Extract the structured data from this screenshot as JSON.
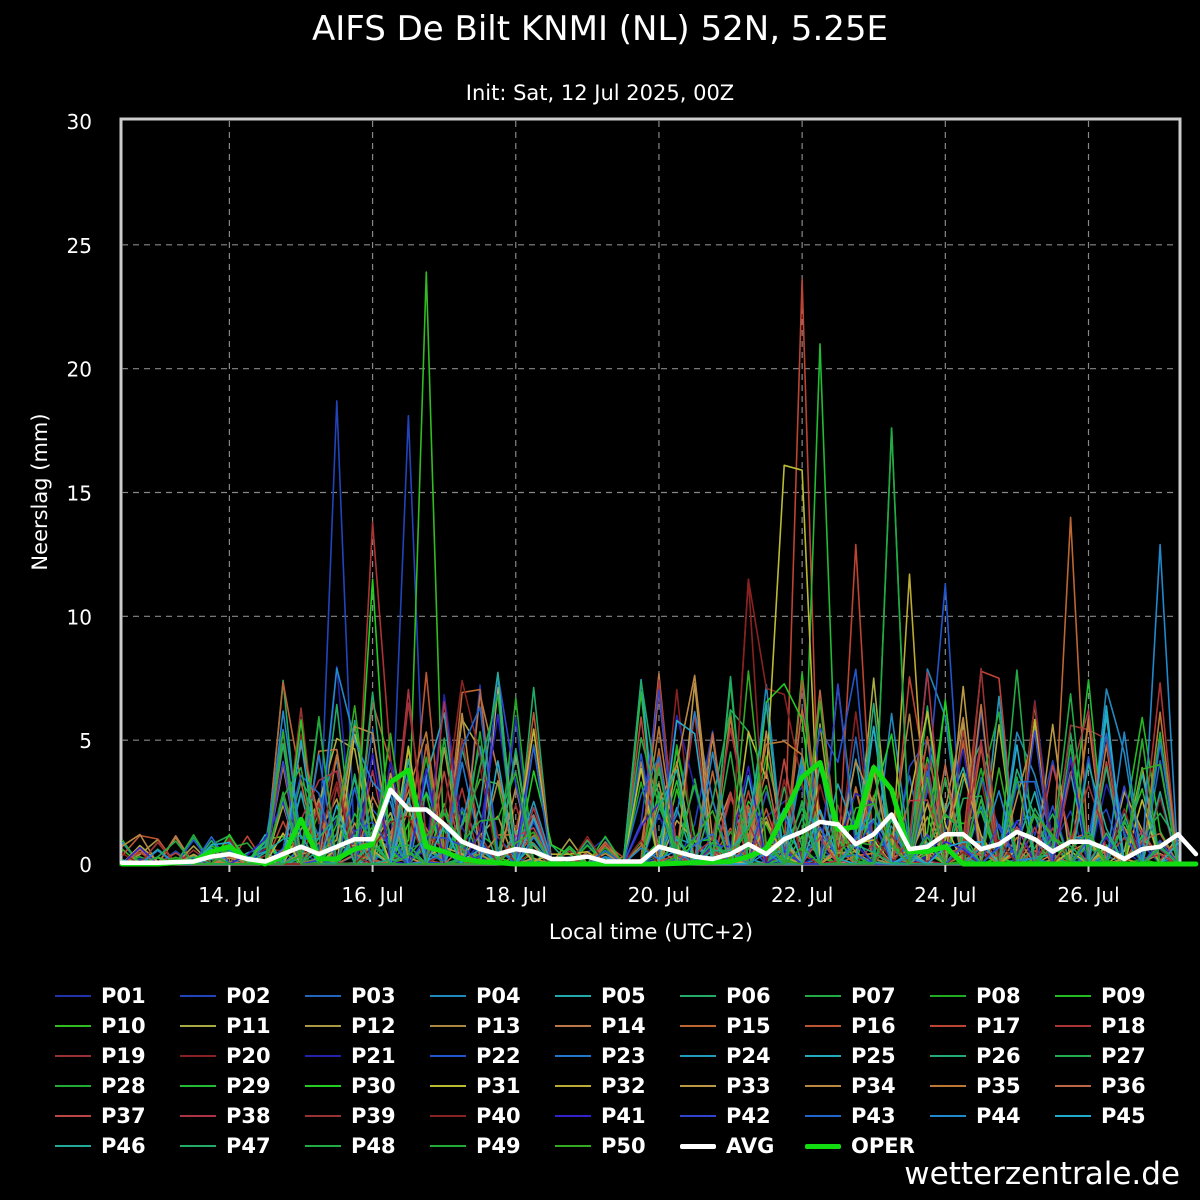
{
  "chart_data": {
    "type": "line",
    "title": "AIFS De Bilt KNMI (NL) 52N, 5.25E",
    "subtitle": "Init: Sat, 12 Jul 2025, 00Z",
    "xlabel": "Local time (UTC+2)",
    "ylabel": "Neerslag (mm)",
    "xlim": [
      "2025-07-12T12:00",
      "2025-07-27T06:00"
    ],
    "ylim": [
      0,
      30
    ],
    "yticks": [
      0,
      5,
      10,
      15,
      20,
      25,
      30
    ],
    "xticks": [
      {
        "date": "2025-07-14",
        "label": "14. Jul"
      },
      {
        "date": "2025-07-16",
        "label": "16. Jul"
      },
      {
        "date": "2025-07-18",
        "label": "18. Jul"
      },
      {
        "date": "2025-07-20",
        "label": "20. Jul"
      },
      {
        "date": "2025-07-22",
        "label": "22. Jul"
      },
      {
        "date": "2025-07-24",
        "label": "24. Jul"
      },
      {
        "date": "2025-07-26",
        "label": "26. Jul"
      }
    ],
    "grid": true,
    "legend_position": "bottom",
    "highlight_series": [
      {
        "name": "AVG",
        "color": "#ffffff",
        "points": [
          [
            "2025-07-12T12:00",
            0.05
          ],
          [
            "2025-07-13T00:00",
            0.05
          ],
          [
            "2025-07-13T12:00",
            0.1
          ],
          [
            "2025-07-13T18:00",
            0.3
          ],
          [
            "2025-07-14T00:00",
            0.4
          ],
          [
            "2025-07-14T06:00",
            0.2
          ],
          [
            "2025-07-14T12:00",
            0.1
          ],
          [
            "2025-07-14T18:00",
            0.4
          ],
          [
            "2025-07-15T00:00",
            0.7
          ],
          [
            "2025-07-15T06:00",
            0.4
          ],
          [
            "2025-07-15T12:00",
            0.7
          ],
          [
            "2025-07-15T18:00",
            1.0
          ],
          [
            "2025-07-16T00:00",
            1.0
          ],
          [
            "2025-07-16T06:00",
            3.0
          ],
          [
            "2025-07-16T12:00",
            2.2
          ],
          [
            "2025-07-16T18:00",
            2.2
          ],
          [
            "2025-07-17T00:00",
            1.6
          ],
          [
            "2025-07-17T06:00",
            0.9
          ],
          [
            "2025-07-17T12:00",
            0.6
          ],
          [
            "2025-07-17T18:00",
            0.4
          ],
          [
            "2025-07-18T00:00",
            0.6
          ],
          [
            "2025-07-18T06:00",
            0.5
          ],
          [
            "2025-07-18T12:00",
            0.2
          ],
          [
            "2025-07-18T18:00",
            0.2
          ],
          [
            "2025-07-19T00:00",
            0.3
          ],
          [
            "2025-07-19T06:00",
            0.1
          ],
          [
            "2025-07-19T12:00",
            0.1
          ],
          [
            "2025-07-19T18:00",
            0.1
          ],
          [
            "2025-07-20T00:00",
            0.7
          ],
          [
            "2025-07-20T06:00",
            0.5
          ],
          [
            "2025-07-20T12:00",
            0.3
          ],
          [
            "2025-07-20T18:00",
            0.2
          ],
          [
            "2025-07-21T00:00",
            0.4
          ],
          [
            "2025-07-21T06:00",
            0.8
          ],
          [
            "2025-07-21T12:00",
            0.4
          ],
          [
            "2025-07-21T18:00",
            1.0
          ],
          [
            "2025-07-22T00:00",
            1.3
          ],
          [
            "2025-07-22T06:00",
            1.7
          ],
          [
            "2025-07-22T12:00",
            1.6
          ],
          [
            "2025-07-22T18:00",
            0.8
          ],
          [
            "2025-07-23T00:00",
            1.2
          ],
          [
            "2025-07-23T06:00",
            2.0
          ],
          [
            "2025-07-23T12:00",
            0.6
          ],
          [
            "2025-07-23T18:00",
            0.7
          ],
          [
            "2025-07-24T00:00",
            1.2
          ],
          [
            "2025-07-24T06:00",
            1.2
          ],
          [
            "2025-07-24T12:00",
            0.6
          ],
          [
            "2025-07-24T18:00",
            0.8
          ],
          [
            "2025-07-25T00:00",
            1.3
          ],
          [
            "2025-07-25T06:00",
            1.0
          ],
          [
            "2025-07-25T12:00",
            0.5
          ],
          [
            "2025-07-25T18:00",
            0.9
          ],
          [
            "2025-07-26T00:00",
            0.9
          ],
          [
            "2025-07-26T06:00",
            0.6
          ],
          [
            "2025-07-26T12:00",
            0.2
          ],
          [
            "2025-07-26T18:00",
            0.6
          ],
          [
            "2025-07-27T00:00",
            0.7
          ],
          [
            "2025-07-27T06:00",
            1.2
          ],
          [
            "2025-07-27T12:00",
            0.4
          ]
        ]
      },
      {
        "name": "OPER",
        "color": "#11dd11",
        "points": [
          [
            "2025-07-12T12:00",
            0
          ],
          [
            "2025-07-13T00:00",
            0
          ],
          [
            "2025-07-13T12:00",
            0.1
          ],
          [
            "2025-07-13T18:00",
            0.5
          ],
          [
            "2025-07-14T00:00",
            0.7
          ],
          [
            "2025-07-14T06:00",
            0.2
          ],
          [
            "2025-07-14T12:00",
            0
          ],
          [
            "2025-07-14T18:00",
            0.3
          ],
          [
            "2025-07-15T00:00",
            1.8
          ],
          [
            "2025-07-15T06:00",
            0.2
          ],
          [
            "2025-07-15T12:00",
            0.2
          ],
          [
            "2025-07-15T18:00",
            0.6
          ],
          [
            "2025-07-16T00:00",
            0.8
          ],
          [
            "2025-07-16T06:00",
            3.3
          ],
          [
            "2025-07-16T12:00",
            3.8
          ],
          [
            "2025-07-16T18:00",
            0.7
          ],
          [
            "2025-07-17T00:00",
            0.5
          ],
          [
            "2025-07-17T06:00",
            0.2
          ],
          [
            "2025-07-17T12:00",
            0.1
          ],
          [
            "2025-07-18T00:00",
            0
          ],
          [
            "2025-07-20T00:00",
            0
          ],
          [
            "2025-07-21T00:00",
            0.1
          ],
          [
            "2025-07-21T06:00",
            0.3
          ],
          [
            "2025-07-21T12:00",
            0.6
          ],
          [
            "2025-07-21T18:00",
            2.0
          ],
          [
            "2025-07-22T00:00",
            3.5
          ],
          [
            "2025-07-22T06:00",
            4.1
          ],
          [
            "2025-07-22T12:00",
            1.4
          ],
          [
            "2025-07-22T18:00",
            1.5
          ],
          [
            "2025-07-23T00:00",
            3.9
          ],
          [
            "2025-07-23T06:00",
            3.0
          ],
          [
            "2025-07-23T12:00",
            0.5
          ],
          [
            "2025-07-23T18:00",
            0.5
          ],
          [
            "2025-07-24T00:00",
            0.7
          ],
          [
            "2025-07-24T06:00",
            0
          ],
          [
            "2025-07-26T00:00",
            0
          ],
          [
            "2025-07-27T12:00",
            0
          ]
        ]
      }
    ],
    "series": [
      {
        "name": "P01",
        "color": "#2233aa"
      },
      {
        "name": "P02",
        "color": "#2244bb"
      },
      {
        "name": "P03",
        "color": "#2266bb"
      },
      {
        "name": "P04",
        "color": "#2288bb"
      },
      {
        "name": "P05",
        "color": "#22aaaa"
      },
      {
        "name": "P06",
        "color": "#22aa66"
      },
      {
        "name": "P07",
        "color": "#22aa44"
      },
      {
        "name": "P08",
        "color": "#22aa22"
      },
      {
        "name": "P09",
        "color": "#22bb22"
      },
      {
        "name": "P10",
        "color": "#33bb22"
      },
      {
        "name": "P11",
        "color": "#aaaa44"
      },
      {
        "name": "P12",
        "color": "#aa9944"
      },
      {
        "name": "P13",
        "color": "#aa8844"
      },
      {
        "name": "P14",
        "color": "#bb7744"
      },
      {
        "name": "P15",
        "color": "#bb6633"
      },
      {
        "name": "P16",
        "color": "#bb5533"
      },
      {
        "name": "P17",
        "color": "#bb4433"
      },
      {
        "name": "P18",
        "color": "#aa3333"
      },
      {
        "name": "P19",
        "color": "#993333"
      },
      {
        "name": "P20",
        "color": "#882222"
      },
      {
        "name": "P21",
        "color": "#2222aa"
      },
      {
        "name": "P22",
        "color": "#2255cc"
      },
      {
        "name": "P23",
        "color": "#2277cc"
      },
      {
        "name": "P24",
        "color": "#2299bb"
      },
      {
        "name": "P25",
        "color": "#22aabb"
      },
      {
        "name": "P26",
        "color": "#22aa77"
      },
      {
        "name": "P27",
        "color": "#22aa55"
      },
      {
        "name": "P28",
        "color": "#22aa33"
      },
      {
        "name": "P29",
        "color": "#22bb33"
      },
      {
        "name": "P30",
        "color": "#22cc22"
      },
      {
        "name": "P31",
        "color": "#bbbb33"
      },
      {
        "name": "P32",
        "color": "#bbaa33"
      },
      {
        "name": "P33",
        "color": "#bb9944"
      },
      {
        "name": "P34",
        "color": "#bb8844"
      },
      {
        "name": "P35",
        "color": "#bb7733"
      },
      {
        "name": "P36",
        "color": "#bb6644"
      },
      {
        "name": "P37",
        "color": "#bb4444"
      },
      {
        "name": "P38",
        "color": "#aa3344"
      },
      {
        "name": "P39",
        "color": "#993333"
      },
      {
        "name": "P40",
        "color": "#882222"
      },
      {
        "name": "P41",
        "color": "#3322cc"
      },
      {
        "name": "P42",
        "color": "#3344cc"
      },
      {
        "name": "P43",
        "color": "#2266cc"
      },
      {
        "name": "P44",
        "color": "#2288cc"
      },
      {
        "name": "P45",
        "color": "#22aacc"
      },
      {
        "name": "P46",
        "color": "#22aa99"
      },
      {
        "name": "P47",
        "color": "#22aa66"
      },
      {
        "name": "P48",
        "color": "#22aa44"
      },
      {
        "name": "P49",
        "color": "#22aa33"
      },
      {
        "name": "P50",
        "color": "#33aa22"
      }
    ],
    "notable_peaks": [
      {
        "series_color": "#33bb22",
        "x": "2025-07-16T15:00",
        "y": 23.9
      },
      {
        "series_color": "#bb4433",
        "x": "2025-07-21T21:00",
        "y": 23.6
      },
      {
        "series_color": "#22bb33",
        "x": "2025-07-22T03:00",
        "y": 21.0
      },
      {
        "series_color": "#2244bb",
        "x": "2025-07-15T09:00",
        "y": 18.7
      },
      {
        "series_color": "#2244bb",
        "x": "2025-07-16T09:00",
        "y": 18.1
      },
      {
        "series_color": "#22aa44",
        "x": "2025-07-23T03:00",
        "y": 17.6
      },
      {
        "series_color": "#bbbb33",
        "x": "2025-07-21T15:00",
        "y": 16.1
      },
      {
        "series_color": "#bbbb33",
        "x": "2025-07-21T21:00",
        "y": 15.9
      },
      {
        "series_color": "#bb6633",
        "x": "2025-07-25T18:00",
        "y": 14.0
      },
      {
        "series_color": "#aa3333",
        "x": "2025-07-16T00:00",
        "y": 13.8
      },
      {
        "series_color": "#2288cc",
        "x": "2025-07-26T21:00",
        "y": 12.9
      },
      {
        "series_color": "#bb4433",
        "x": "2025-07-22T15:00",
        "y": 12.9
      },
      {
        "series_color": "#22cc22",
        "x": "2025-07-16T00:00",
        "y": 11.5
      },
      {
        "series_color": "#882222",
        "x": "2025-07-21T06:00",
        "y": 11.5
      },
      {
        "series_color": "#2255cc",
        "x": "2025-07-23T21:00",
        "y": 11.3
      },
      {
        "series_color": "#bbaa33",
        "x": "2025-07-23T09:00",
        "y": 11.7
      }
    ]
  },
  "legend": {
    "items": [
      {
        "label": "P01",
        "color": "#2233aa"
      },
      {
        "label": "P02",
        "color": "#2244bb"
      },
      {
        "label": "P03",
        "color": "#2266bb"
      },
      {
        "label": "P04",
        "color": "#2288bb"
      },
      {
        "label": "P05",
        "color": "#22aaaa"
      },
      {
        "label": "P06",
        "color": "#22aa66"
      },
      {
        "label": "P07",
        "color": "#22aa44"
      },
      {
        "label": "P08",
        "color": "#22aa22"
      },
      {
        "label": "P09",
        "color": "#22bb22"
      },
      {
        "label": "P10",
        "color": "#33bb22"
      },
      {
        "label": "P11",
        "color": "#aaaa44"
      },
      {
        "label": "P12",
        "color": "#aa9944"
      },
      {
        "label": "P13",
        "color": "#aa8844"
      },
      {
        "label": "P14",
        "color": "#bb7744"
      },
      {
        "label": "P15",
        "color": "#bb6633"
      },
      {
        "label": "P16",
        "color": "#bb5533"
      },
      {
        "label": "P17",
        "color": "#bb4433"
      },
      {
        "label": "P18",
        "color": "#aa3333"
      },
      {
        "label": "P19",
        "color": "#993333"
      },
      {
        "label": "P20",
        "color": "#882222"
      },
      {
        "label": "P21",
        "color": "#2222aa"
      },
      {
        "label": "P22",
        "color": "#2255cc"
      },
      {
        "label": "P23",
        "color": "#2277cc"
      },
      {
        "label": "P24",
        "color": "#2299bb"
      },
      {
        "label": "P25",
        "color": "#22aabb"
      },
      {
        "label": "P26",
        "color": "#22aa77"
      },
      {
        "label": "P27",
        "color": "#22aa55"
      },
      {
        "label": "P28",
        "color": "#22aa33"
      },
      {
        "label": "P29",
        "color": "#22bb33"
      },
      {
        "label": "P30",
        "color": "#22cc22"
      },
      {
        "label": "P31",
        "color": "#bbbb33"
      },
      {
        "label": "P32",
        "color": "#bbaa33"
      },
      {
        "label": "P33",
        "color": "#bb9944"
      },
      {
        "label": "P34",
        "color": "#bb8844"
      },
      {
        "label": "P35",
        "color": "#bb7733"
      },
      {
        "label": "P36",
        "color": "#bb6644"
      },
      {
        "label": "P37",
        "color": "#bb4444"
      },
      {
        "label": "P38",
        "color": "#aa3344"
      },
      {
        "label": "P39",
        "color": "#993333"
      },
      {
        "label": "P40",
        "color": "#882222"
      },
      {
        "label": "P41",
        "color": "#3322cc"
      },
      {
        "label": "P42",
        "color": "#3344cc"
      },
      {
        "label": "P43",
        "color": "#2266cc"
      },
      {
        "label": "P44",
        "color": "#2288cc"
      },
      {
        "label": "P45",
        "color": "#22aacc"
      },
      {
        "label": "P46",
        "color": "#22aa99"
      },
      {
        "label": "P47",
        "color": "#22aa66"
      },
      {
        "label": "P48",
        "color": "#22aa44"
      },
      {
        "label": "P49",
        "color": "#22aa33"
      },
      {
        "label": "P50",
        "color": "#33aa22"
      },
      {
        "label": "AVG",
        "color": "#ffffff",
        "thick": true
      },
      {
        "label": "OPER",
        "color": "#11dd11",
        "thick": true
      }
    ]
  },
  "watermark": "wetterzentrale.de"
}
